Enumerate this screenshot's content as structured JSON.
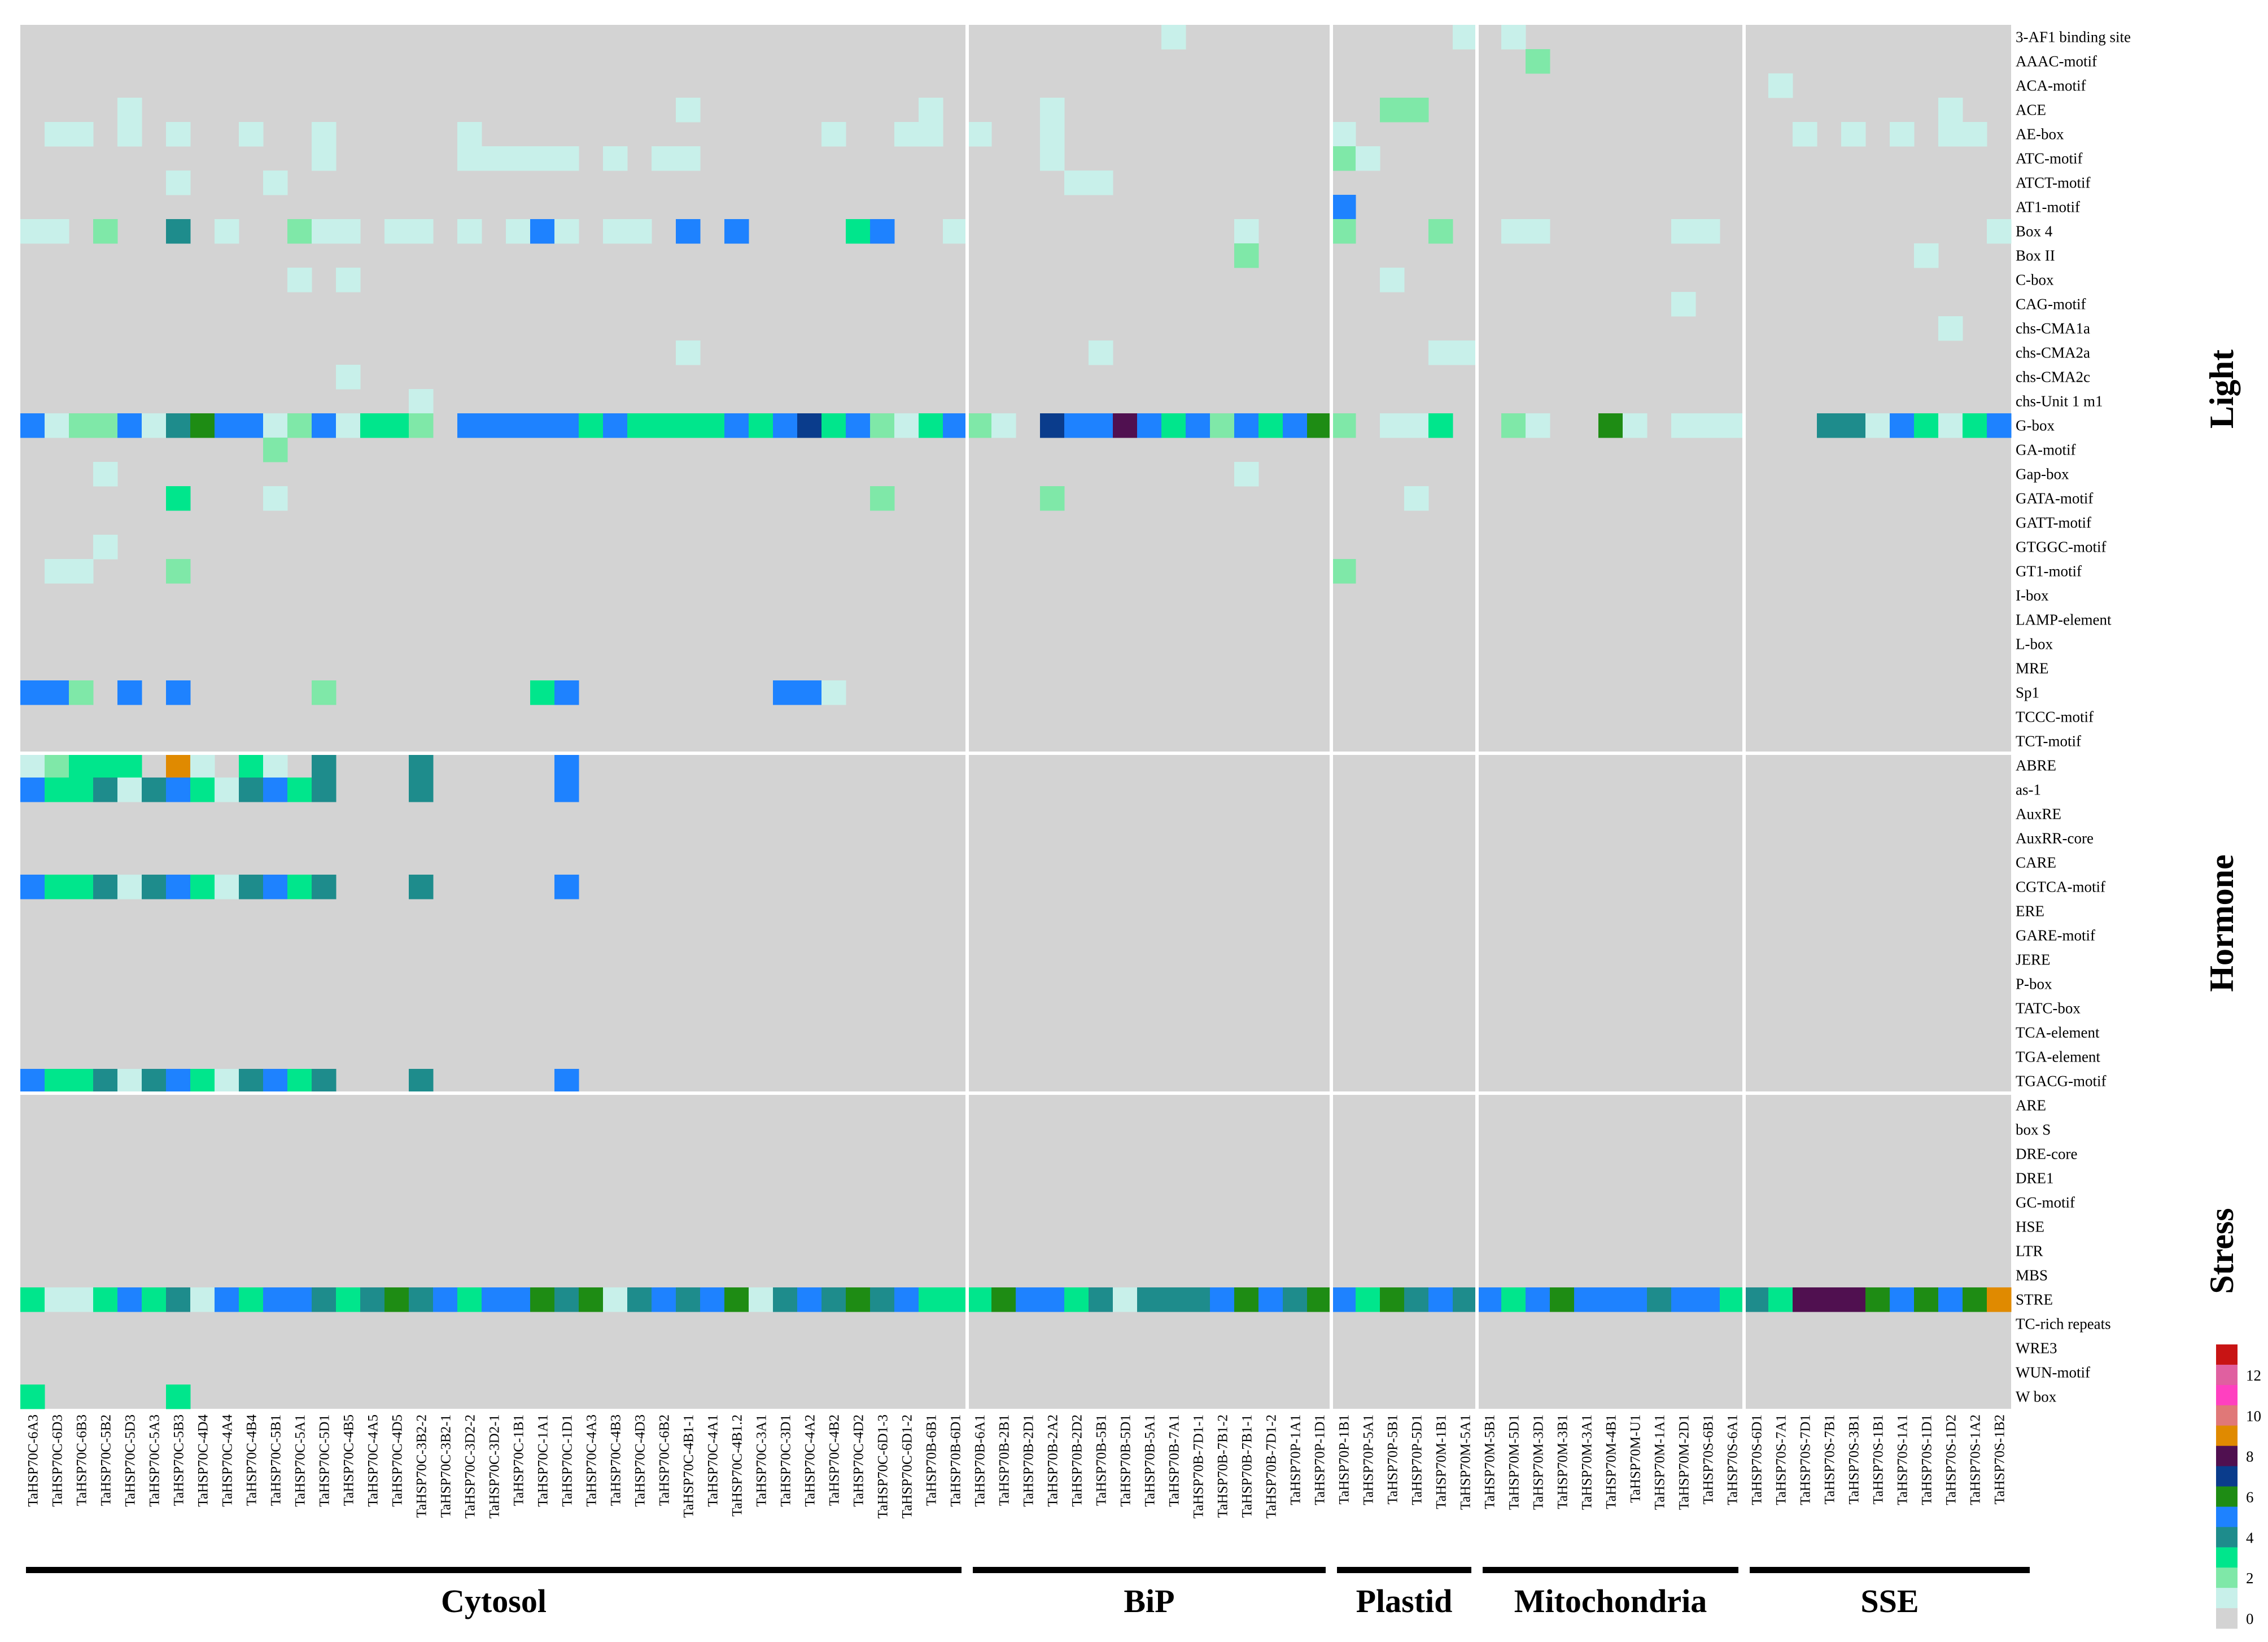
{
  "chart_data": {
    "type": "heatmap",
    "rows": [
      "3-AF1 binding site",
      "AAAC-motif",
      "ACA-motif",
      "ACE",
      "AE-box",
      "ATC-motif",
      "ATCT-motif",
      "AT1-motif",
      "Box 4",
      "Box II",
      "C-box",
      "CAG-motif",
      "chs-CMA1a",
      "chs-CMA2a",
      "chs-CMA2c",
      "chs-Unit 1 m1",
      "G-box",
      "GA-motif",
      "Gap-box",
      "GATA-motif",
      "GATT-motif",
      "GTGGC-motif",
      "GT1-motif",
      "I-box",
      "LAMP-element",
      "L-box",
      "MRE",
      "Sp1",
      "TCCC-motif",
      "TCT-motif",
      "ABRE",
      "as-1",
      "AuxRE",
      "AuxRR-core",
      "CARE",
      "CGTCA-motif",
      "ERE",
      "GARE-motif",
      "JERE",
      "P-box",
      "TATC-box",
      "TCA-element",
      "TGA-element",
      "TGACG-motif",
      "ARE",
      "box S",
      "DRE-core",
      "DRE1",
      "GC-motif",
      "HSE",
      "LTR",
      "MBS",
      "STRE",
      "TC-rich repeats",
      "WRE3",
      "WUN-motif",
      "W box"
    ],
    "columns": [
      "TaHSP70C-6A3",
      "TaHSP70C-6D3",
      "TaHSP70C-6B3",
      "TaHSP70C-5B2",
      "TaHSP70C-5D3",
      "TaHSP70C-5A3",
      "TaHSP70C-5B3",
      "TaHSP70C-4D4",
      "TaHSP70C-4A4",
      "TaHSP70C-4B4",
      "TaHSP70C-5B1",
      "TaHSP70C-5A1",
      "TaHSP70C-5D1",
      "TaHSP70C-4B5",
      "TaHSP70C-4A5",
      "TaHSP70C-4D5",
      "TaHSP70C-3B2-2",
      "TaHSP70C-3B2-1",
      "TaHSP70C-3D2-2",
      "TaHSP70C-3D2-1",
      "TaHSP70C-1B1",
      "TaHSP70C-1A1",
      "TaHSP70C-1D1",
      "TaHSP70C-4A3",
      "TaHSP70C-4B3",
      "TaHSP70C-4D3",
      "TaHSP70C-6B2",
      "TaHSP70C-4B1-1",
      "TaHSP70C-4A1",
      "TaHSP70C-4B1.2",
      "TaHSP70C-3A1",
      "TaHSP70C-3D1",
      "TaHSP70C-4A2",
      "TaHSP70C-4B2",
      "TaHSP70C-4D2",
      "TaHSP70C-6D1-3",
      "TaHSP70C-6D1-2",
      "TaHSP70B-6B1",
      "TaHSP70B-6D1",
      "TaHSP70B-6A1",
      "TaHSP70B-2B1",
      "TaHSP70B-2D1",
      "TaHSP70B-2A2",
      "TaHSP70B-2D2",
      "TaHSP70B-5B1",
      "TaHSP70B-5D1",
      "TaHSP70B-5A1",
      "TaHSP70B-7A1",
      "TaHSP70B-7D1-1",
      "TaHSP70B-7B1-2",
      "TaHSP70B-7B1-1",
      "TaHSP70B-7D1-2",
      "TaHSP70P-1A1",
      "TaHSP70P-1D1",
      "TaHSP70P-1B1",
      "TaHSP70P-5A1",
      "TaHSP70P-5B1",
      "TaHSP70P-5D1",
      "TaHSP70M-1B1",
      "TaHSP70M-5A1",
      "TaHSP70M-5B1",
      "TaHSP70M-5D1",
      "TaHSP70M-3D1",
      "TaHSP70M-3B1",
      "TaHSP70M-3A1",
      "TaHSP70M-4B1",
      "TaHSP70M-U1",
      "TaHSP70M-1A1",
      "TaHSP70M-2D1",
      "TaHSP70S-6B1",
      "TaHSP70S-6A1",
      "TaHSP70S-6D1",
      "TaHSP70S-7A1",
      "TaHSP70S-7D1",
      "TaHSP70S-7B1",
      "TaHSP70S-3B1",
      "TaHSP70S-1B1",
      "TaHSP70S-1A1",
      "TaHSP70S-1D1",
      "TaHSP70S-1D2",
      "TaHSP70S-1A2",
      "TaHSP70S-1B2"
    ],
    "column_groups": [
      {
        "name": "Cytosol",
        "start": 0,
        "end": 38
      },
      {
        "name": "BiP",
        "start": 39,
        "end": 53
      },
      {
        "name": "Plastid",
        "start": 54,
        "end": 59
      },
      {
        "name": "Mitochondria",
        "start": 60,
        "end": 70
      },
      {
        "name": "SSE",
        "start": 71,
        "end": 82
      }
    ],
    "row_categories": [
      {
        "name": "Light",
        "start": 0,
        "end": 29
      },
      {
        "name": "Hormone",
        "start": 30,
        "end": 43
      },
      {
        "name": "Stress",
        "start": 44,
        "end": 56
      }
    ],
    "legend": {
      "ticks": [
        "12",
        "10",
        "8",
        "6",
        "4",
        "2",
        "0"
      ],
      "min": 0,
      "max": 13
    },
    "colors": [
      "#d3d3d3",
      "#c8f0ea",
      "#7fe8a8",
      "#00e68c",
      "#1e8c8c",
      "#1e82ff",
      "#1e8c14",
      "#0a3c8c",
      "#501050",
      "#e08a00",
      "#e07878",
      "#ff40c0",
      "#e060a0",
      "#c81414"
    ],
    "values": [
      "0000000000000000000000000000000000000000000000010000000000010100000000000000000000000",
      "0000000000000000000000000000000000000000000000000000000000000020000000000000000000000",
      "0000000000000000000000000000000000000000000000000000000000000000000000001000000000000",
      "0000100000000000000000000001000000000100001000000000000022000000000000000000000100000",
      "0110101001001000001000000000000001001101001000000000001000000000000000000101010110010",
      "0000000000001000001111101011000000000000001000000000002100000000000000000000000000000",
      "0000001000100000000000000000000000000000000110000000000000000000000000000000000000000",
      "0000000000000000000000000000000000000000000000000000005000000000000000000000000000000",
      "1102004010021101101015101105050000350010000000000010002000200110000011000000000001100",
      "0000000000000000000000000000000000000000000000000020000000000000000000000000001000111",
      "0000000000010100000000000000000000000000000000000000000010000000000000000000000000000",
      "0000000000000000000000000000000000000000000000000000000000000000000010000000000000000",
      "0000000000000000000000000000000000000000000000000000000000000000000000000000000100000",
      "0000000000000000000000000001000000000000000010000000000000110000000000000000000000000",
      "0000000000000100000000000000000000000000000000000000000000000000000000000000000000000",
      "0000000000000000100000000000000000000000000000000000000000000000000000000000000000000",
      "5122514655125133205555535333353573521352107558535253562011300210061011100044153135145",
      "0000000000200000000000000000000000000000000000000000000000000000000000000000000000000",
      "0001000000000000000000000000000000000000000000000010000000000000000000000000000000000",
      "0000003000100000000000000000000000020000002000000000000001000000000000000000000000000",
      "0000000000000000000000000000000000000000000000000000000000000000000000000000000000000",
      "0001000000000000000000000000000000000000000000000000000000000000000000000000000000000",
      "0110002000000000000000000000000000000000000000000000002000000000000000000000000000000",
      "0000000000000000000000000000000000000000000000000000000000000000000000000000000000000",
      "0000000000000000000000000000000000000000000000000000000000000000000000000000000000000",
      "0000000000000000000000000000000000000000000000000000000000000000000000000000000000000",
      "0000000000000000000000000000000000000000000000000000000000000000000000000000000000000",
      "5520505000002000000003500000000551000000000000000000000000000000000000000000000000000",
      "0000000000000000000000000000000000000000000000000000000000000000000000000000000000000",
      "0000000000000000000000000000000000000000000000000000000000000000000000000000000000000",
      "1233309103104000400000500000000000000000000000000000000000000000000000000000000000000",
      "5334145314534000400000500000000000000000000000000000000000000000000000000000000000000",
      "0000000000000000000000000000000000000000000000000000000000000000000000000000000000000",
      "0000000000000000000000000000000000000000000000000000000000000000000000000000000000000",
      "0000000000000000000000000000000000000000000000000000000000000000000000000000000000000",
      "5334145314534000400000500000000000000000000000000000000000000000000000000000000000000",
      "0000000000000000000000000000000000000000000000000000000000000000000000000000000000000",
      "0000000000000000000000000000000000000000000000000000000000000000000000000000000000000",
      "0000000000000000000000000000000000000000000000000000000000000000000000000000000000000",
      "0000000000000000000000000000000000000000000000000000000000000000000000000000000000000",
      "0000000000000000000000000000000000000000000000000000000000000000000000000000000000000",
      "0000000000000000000000000000000000000000000000000000000000000000000000000000000000000",
      "0000000000000000000000000000000000000000000000000000000000000000000000000000000000000",
      "5334145314534000400000500000000000000000000000000000000000000000000000000000000000000",
      "0000000000000000000000000000000000000000000000000000000000000000000000000000000000000",
      "0000000000000000000000000000000000000000000000000000000000000000000000000000000000000",
      "0000000000000000000000000000000000000000000000000000000000000000000000000000000000000",
      "0000000000000000000000000000000000000000000000000000000000000000000000000000000000000",
      "0000000000000000000000000000000000000000000000000000000000000000000000000000000000000",
      "0000000000000000000000000000000000000000000000000000000000000000000000000000000000000",
      "0000000000000000000000000000000000000000000000000000000000000000000000000000000000000",
      "0000000000000000000000000000000000000000000000000000000000000000000000000000000000000",
      "3113534153554346453556461454561454645333655341444565465364545356555455343888656569393",
      "0000000000000000000000000000000000000000000000000000000000000000000000000000000000000",
      "0000000000000000000000000000000000000000000000000000000000000000000000000000000000000",
      "0000000000000000000000000000000000000000000000000000000000000000000000000000000000000",
      "3000003000000000000000000000000000000000000000000000000000000000000000000000000000000"
    ]
  }
}
